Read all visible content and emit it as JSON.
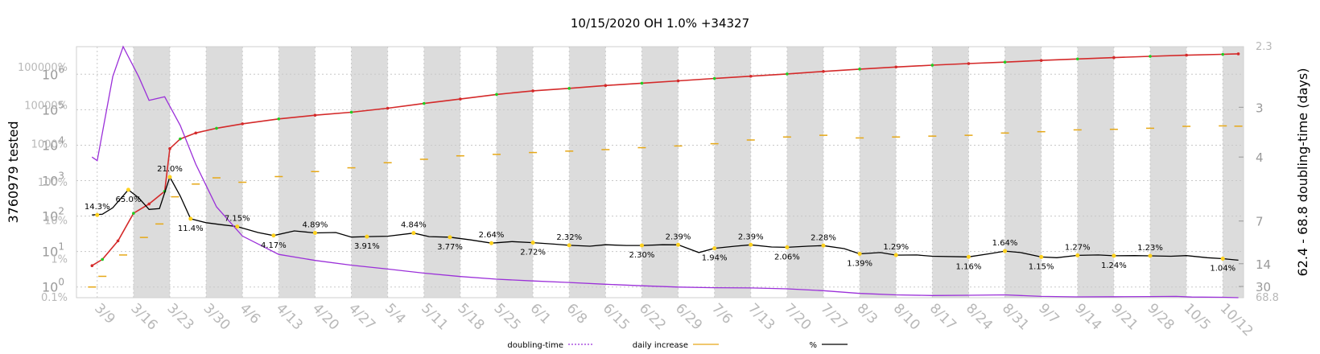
{
  "chart_data": {
    "type": "line",
    "title": "10/15/2020 OH 1.0% +34327",
    "ylabel_left": "3760979 tested",
    "ylabel_right": "62.4 - 68.8 doubling-time (days)",
    "x_tick_labels": [
      "3/9",
      "3/16",
      "3/23",
      "3/30",
      "4/6",
      "4/13",
      "4/20",
      "4/27",
      "5/4",
      "5/11",
      "5/18",
      "5/25",
      "6/1",
      "6/8",
      "6/15",
      "6/22",
      "6/29",
      "7/6",
      "7/13",
      "7/20",
      "7/27",
      "8/3",
      "8/10",
      "8/17",
      "8/24",
      "8/31",
      "9/7",
      "9/14",
      "9/21",
      "9/28",
      "10/5",
      "10/12"
    ],
    "y_left_ticks_count": [
      "10^0",
      "10^1",
      "10^2",
      "10^3",
      "10^4",
      "10^5",
      "10^6"
    ],
    "y_left_ticks_percent": [
      "0.1%",
      "1%",
      "10%",
      "100%",
      "1000%",
      "10000%",
      "100000%"
    ],
    "y_right_ticks": [
      "2.3",
      "3",
      "4",
      "7",
      "14",
      "30",
      "68.8"
    ],
    "y_scale": "log",
    "grid": true,
    "legend": [
      {
        "name": "doubling-time",
        "color": "#9b30d9",
        "style": "dotted"
      },
      {
        "name": "daily increase",
        "color": "#e6a817",
        "style": "solid"
      },
      {
        "name": "%",
        "color": "#000000",
        "style": "solid"
      }
    ],
    "annotations": [
      {
        "date": "3/9",
        "text": "14.3%"
      },
      {
        "date": "3/15",
        "text": "65.0%"
      },
      {
        "date": "3/23",
        "text": "21.0%"
      },
      {
        "date": "3/27",
        "text": "11.4%"
      },
      {
        "date": "4/5",
        "text": "7.15%"
      },
      {
        "date": "4/12",
        "text": "4.17%"
      },
      {
        "date": "4/20",
        "text": "4.89%"
      },
      {
        "date": "4/30",
        "text": "3.91%"
      },
      {
        "date": "5/9",
        "text": "4.84%"
      },
      {
        "date": "5/16",
        "text": "3.77%"
      },
      {
        "date": "5/24",
        "text": "2.64%"
      },
      {
        "date": "6/1",
        "text": "2.72%"
      },
      {
        "date": "6/8",
        "text": "2.32%"
      },
      {
        "date": "6/22",
        "text": "2.30%"
      },
      {
        "date": "6/29",
        "text": "2.39%"
      },
      {
        "date": "7/6",
        "text": "1.94%"
      },
      {
        "date": "7/13",
        "text": "2.39%"
      },
      {
        "date": "7/20",
        "text": "2.06%"
      },
      {
        "date": "7/27",
        "text": "2.28%"
      },
      {
        "date": "8/3",
        "text": "1.39%"
      },
      {
        "date": "8/10",
        "text": "1.29%"
      },
      {
        "date": "8/24",
        "text": "1.16%"
      },
      {
        "date": "8/31",
        "text": "1.64%"
      },
      {
        "date": "9/7",
        "text": "1.15%"
      },
      {
        "date": "9/14",
        "text": "1.27%"
      },
      {
        "date": "9/21",
        "text": "1.24%"
      },
      {
        "date": "9/28",
        "text": "1.23%"
      },
      {
        "date": "10/12",
        "text": "1.04%"
      }
    ],
    "series": [
      {
        "name": "tested",
        "color": "#d42a2a",
        "alt_color": "#22cc22",
        "scale": "count",
        "points": [
          [
            "3/8",
            4
          ],
          [
            "3/10",
            6
          ],
          [
            "3/13",
            20
          ],
          [
            "3/16",
            120
          ],
          [
            "3/19",
            220
          ],
          [
            "3/22",
            500
          ],
          [
            "3/23",
            8000
          ],
          [
            "3/25",
            15000
          ],
          [
            "3/28",
            22000
          ],
          [
            "4/1",
            30000
          ],
          [
            "4/6",
            40000
          ],
          [
            "4/13",
            55000
          ],
          [
            "4/20",
            70000
          ],
          [
            "4/27",
            85000
          ],
          [
            "5/4",
            110000
          ],
          [
            "5/11",
            150000
          ],
          [
            "5/18",
            200000
          ],
          [
            "5/25",
            270000
          ],
          [
            "6/1",
            340000
          ],
          [
            "6/8",
            400000
          ],
          [
            "6/15",
            480000
          ],
          [
            "6/22",
            560000
          ],
          [
            "6/29",
            650000
          ],
          [
            "7/6",
            760000
          ],
          [
            "7/13",
            880000
          ],
          [
            "7/20",
            1020000
          ],
          [
            "7/27",
            1200000
          ],
          [
            "8/3",
            1400000
          ],
          [
            "8/10",
            1600000
          ],
          [
            "8/17",
            1800000
          ],
          [
            "8/24",
            2000000
          ],
          [
            "8/31",
            2200000
          ],
          [
            "9/7",
            2450000
          ],
          [
            "9/14",
            2700000
          ],
          [
            "9/21",
            2950000
          ],
          [
            "9/28",
            3200000
          ],
          [
            "10/5",
            3450000
          ],
          [
            "10/12",
            3650000
          ],
          [
            "10/15",
            3760979
          ]
        ]
      },
      {
        "name": "%",
        "color": "#000000",
        "scale": "percent",
        "points": [
          [
            "3/8",
            14.3
          ],
          [
            "3/10",
            15
          ],
          [
            "3/12",
            22
          ],
          [
            "3/15",
            65
          ],
          [
            "3/17",
            40
          ],
          [
            "3/19",
            20
          ],
          [
            "3/21",
            21
          ],
          [
            "3/23",
            140
          ],
          [
            "3/25",
            45
          ],
          [
            "3/27",
            11.4
          ],
          [
            "3/30",
            9
          ],
          [
            "4/2",
            8
          ],
          [
            "4/5",
            7.15
          ],
          [
            "4/9",
            5
          ],
          [
            "4/12",
            4.17
          ],
          [
            "4/16",
            5.5
          ],
          [
            "4/20",
            4.89
          ],
          [
            "4/24",
            5
          ],
          [
            "4/27",
            3.8
          ],
          [
            "4/30",
            3.91
          ],
          [
            "5/4",
            4
          ],
          [
            "5/9",
            4.84
          ],
          [
            "5/12",
            3.9
          ],
          [
            "5/16",
            3.77
          ],
          [
            "5/20",
            3.2
          ],
          [
            "5/24",
            2.64
          ],
          [
            "5/28",
            2.9
          ],
          [
            "6/1",
            2.72
          ],
          [
            "6/5",
            2.5
          ],
          [
            "6/8",
            2.32
          ],
          [
            "6/12",
            2.2
          ],
          [
            "6/15",
            2.4
          ],
          [
            "6/19",
            2.3
          ],
          [
            "6/22",
            2.3
          ],
          [
            "6/26",
            2.4
          ],
          [
            "6/29",
            2.39
          ],
          [
            "7/3",
            1.5
          ],
          [
            "7/6",
            1.94
          ],
          [
            "7/10",
            2.2
          ],
          [
            "7/13",
            2.39
          ],
          [
            "7/17",
            2.1
          ],
          [
            "7/20",
            2.06
          ],
          [
            "7/24",
            2.2
          ],
          [
            "7/27",
            2.28
          ],
          [
            "7/31",
            1.9
          ],
          [
            "8/3",
            1.39
          ],
          [
            "8/7",
            1.5
          ],
          [
            "8/10",
            1.29
          ],
          [
            "8/14",
            1.3
          ],
          [
            "8/17",
            1.2
          ],
          [
            "8/24",
            1.16
          ],
          [
            "8/28",
            1.4
          ],
          [
            "8/31",
            1.64
          ],
          [
            "9/3",
            1.5
          ],
          [
            "9/7",
            1.15
          ],
          [
            "9/10",
            1.1
          ],
          [
            "9/14",
            1.27
          ],
          [
            "9/18",
            1.3
          ],
          [
            "9/21",
            1.24
          ],
          [
            "9/25",
            1.25
          ],
          [
            "9/28",
            1.23
          ],
          [
            "10/2",
            1.2
          ],
          [
            "10/5",
            1.25
          ],
          [
            "10/9",
            1.1
          ],
          [
            "10/12",
            1.04
          ],
          [
            "10/15",
            0.95
          ]
        ]
      },
      {
        "name": "doubling-time",
        "color": "#9b30d9",
        "scale": "days",
        "points": [
          [
            "3/8",
            4
          ],
          [
            "3/9",
            4.1
          ],
          [
            "3/12",
            2.6
          ],
          [
            "3/14",
            2.3
          ],
          [
            "3/17",
            2.6
          ],
          [
            "3/19",
            2.9
          ],
          [
            "3/22",
            2.85
          ],
          [
            "3/25",
            3.3
          ],
          [
            "3/28",
            4.2
          ],
          [
            "4/1",
            6
          ],
          [
            "4/6",
            8.5
          ],
          [
            "4/13",
            11.5
          ],
          [
            "4/20",
            13
          ],
          [
            "4/27",
            14.5
          ],
          [
            "5/4",
            16
          ],
          [
            "5/11",
            18
          ],
          [
            "5/18",
            20
          ],
          [
            "5/25",
            22
          ],
          [
            "6/1",
            23.5
          ],
          [
            "6/8",
            25
          ],
          [
            "6/15",
            27
          ],
          [
            "6/22",
            29
          ],
          [
            "6/29",
            31
          ],
          [
            "7/6",
            32
          ],
          [
            "7/13",
            32.5
          ],
          [
            "7/20",
            34
          ],
          [
            "7/27",
            38
          ],
          [
            "8/3",
            46
          ],
          [
            "8/10",
            52
          ],
          [
            "8/17",
            55
          ],
          [
            "8/24",
            54
          ],
          [
            "8/31",
            52
          ],
          [
            "9/7",
            60
          ],
          [
            "9/14",
            63
          ],
          [
            "9/21",
            62
          ],
          [
            "9/28",
            61
          ],
          [
            "10/3",
            60
          ],
          [
            "10/6",
            64
          ],
          [
            "10/12",
            66
          ],
          [
            "10/15",
            68.8
          ]
        ]
      },
      {
        "name": "daily increase",
        "color": "#e6a817",
        "scale": "count",
        "points": [
          [
            "3/8",
            1
          ],
          [
            "3/10",
            2
          ],
          [
            "3/14",
            8
          ],
          [
            "3/18",
            25
          ],
          [
            "3/21",
            60
          ],
          [
            "3/24",
            350
          ],
          [
            "3/28",
            800
          ],
          [
            "4/1",
            1200
          ],
          [
            "4/6",
            900
          ],
          [
            "4/13",
            1300
          ],
          [
            "4/20",
            1800
          ],
          [
            "4/27",
            2300
          ],
          [
            "5/4",
            3200
          ],
          [
            "5/11",
            4000
          ],
          [
            "5/18",
            5000
          ],
          [
            "5/25",
            5500
          ],
          [
            "6/1",
            6200
          ],
          [
            "6/8",
            6800
          ],
          [
            "6/15",
            7500
          ],
          [
            "6/22",
            8500
          ],
          [
            "6/29",
            9500
          ],
          [
            "7/6",
            11000
          ],
          [
            "7/13",
            14000
          ],
          [
            "7/20",
            17000
          ],
          [
            "7/27",
            19000
          ],
          [
            "8/3",
            16000
          ],
          [
            "8/10",
            17000
          ],
          [
            "8/17",
            18000
          ],
          [
            "8/24",
            19000
          ],
          [
            "8/31",
            22000
          ],
          [
            "9/7",
            24000
          ],
          [
            "9/14",
            27000
          ],
          [
            "9/21",
            28000
          ],
          [
            "9/28",
            30000
          ],
          [
            "10/5",
            34000
          ],
          [
            "10/12",
            35000
          ],
          [
            "10/15",
            34327
          ]
        ]
      }
    ]
  }
}
